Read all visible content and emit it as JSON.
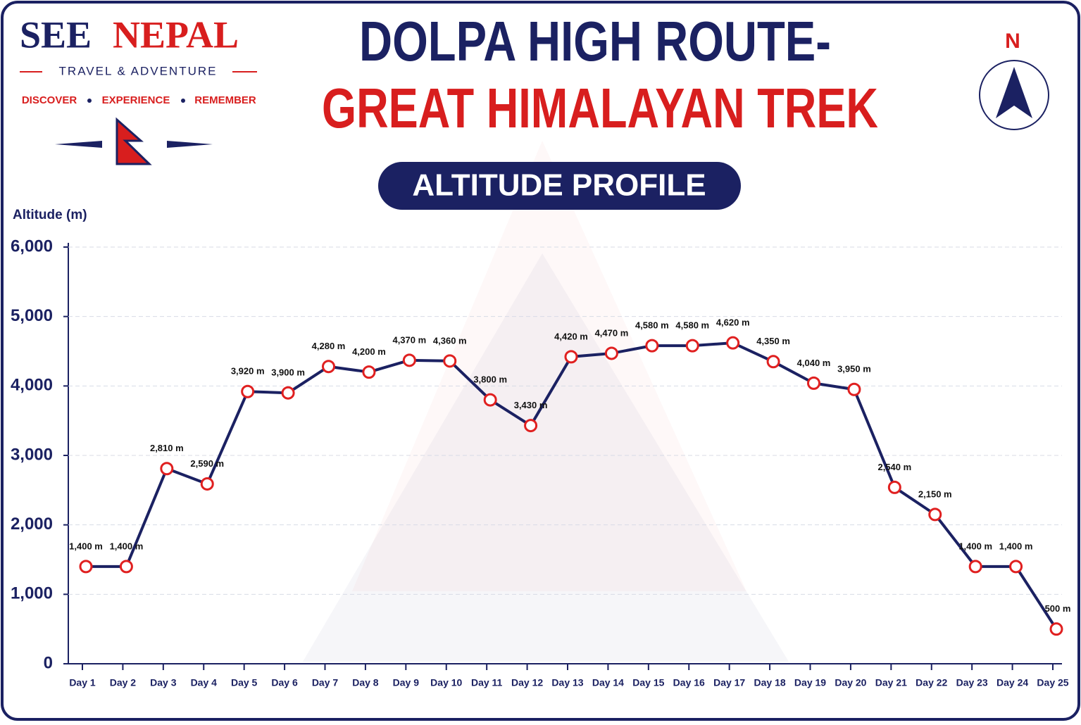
{
  "brand": {
    "name": [
      "SEE",
      "NEPAL"
    ],
    "tagline": "TRAVEL & ADVENTURE",
    "motto": [
      "DISCOVER",
      "EXPERIENCE",
      "REMEMBER"
    ]
  },
  "compass": "N",
  "chart_data": {
    "type": "line",
    "title": [
      "DOLPA HIGH ROUTE-",
      "GREAT HIMALAYAN TREK"
    ],
    "subtitle": "ALTITUDE PROFILE",
    "y_label": "Altitude (m)",
    "categories": [
      "Day 1",
      "Day 2",
      "Day 3",
      "Day 4",
      "Day 5",
      "Day 6",
      "Day 7",
      "Day 8",
      "Day 9",
      "Day 10",
      "Day 11",
      "Day 12",
      "Day 13",
      "Day 14",
      "Day 15",
      "Day 16",
      "Day 17",
      "Day 18",
      "Day 19",
      "Day 20",
      "Day 21",
      "Day 22",
      "Day 23",
      "Day 24",
      "Day 25"
    ],
    "values": [
      1400,
      1400,
      2810,
      2590,
      3920,
      3900,
      4280,
      4200,
      4370,
      4360,
      3800,
      3430,
      4420,
      4470,
      4580,
      4580,
      4620,
      4350,
      4040,
      3950,
      2540,
      2150,
      1400,
      1400,
      500
    ],
    "value_labels": [
      "1,400 m",
      "1,400 m",
      "2,810 m",
      "2,590 m",
      "3,920 m",
      "3,900 m",
      "4,280 m",
      "4,200 m",
      "4,370 m",
      "4,360 m",
      "3,800 m",
      "3,430 m",
      "4,420 m",
      "4,470 m",
      "4,580 m",
      "4,580 m",
      "4,620 m",
      "4,350 m",
      "4,040 m",
      "3,950 m",
      "2,540 m",
      "2,150 m",
      "1,400 m",
      "1,400 m",
      "500 m"
    ],
    "color": "#1b2162",
    "marker_color": "#e02020",
    "ylim": [
      0,
      6000
    ],
    "yticks": [
      0,
      {
        "value": 1000,
        "label": "1,000"
      },
      {
        "value": 2000,
        "label": "2,000"
      },
      {
        "value": 3000,
        "label": "3,000"
      },
      {
        "value": 4000,
        "label": "4,000"
      },
      {
        "value": 5000,
        "label": "5,000"
      },
      {
        "value": 6000,
        "label": "6,000"
      }
    ],
    "grid": true
  }
}
